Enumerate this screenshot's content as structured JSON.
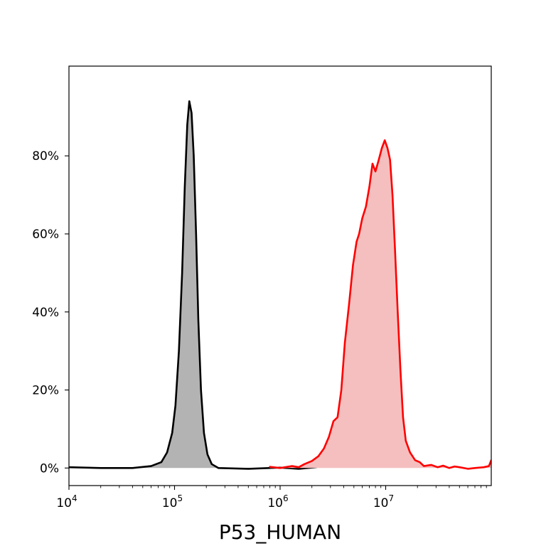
{
  "chart_data": {
    "type": "area",
    "title": "",
    "xlabel": "P53_HUMAN",
    "ylabel": "",
    "x_scale": "log",
    "xlim": [
      10000,
      100000000
    ],
    "ylim": [
      -0.045,
      1.03
    ],
    "grid": false,
    "x_ticks": [
      {
        "value": 10000,
        "base": "10",
        "exp": "4"
      },
      {
        "value": 100000,
        "base": "10",
        "exp": "5"
      },
      {
        "value": 1000000,
        "base": "10",
        "exp": "6"
      },
      {
        "value": 10000000,
        "base": "10",
        "exp": "7"
      }
    ],
    "y_ticks": [
      {
        "value": 0,
        "label": "0%"
      },
      {
        "value": 0.2,
        "label": "20%"
      },
      {
        "value": 0.4,
        "label": "40%"
      },
      {
        "value": 0.6,
        "label": "60%"
      },
      {
        "value": 0.8,
        "label": "80%"
      }
    ],
    "series": [
      {
        "stroke": "#000000",
        "fill": "#b3b3b3",
        "points": [
          [
            10000,
            0.002
          ],
          [
            20000,
            0.0
          ],
          [
            40000,
            0.0
          ],
          [
            60000,
            0.005
          ],
          [
            75000,
            0.015
          ],
          [
            85000,
            0.04
          ],
          [
            95000,
            0.09
          ],
          [
            102000,
            0.16
          ],
          [
            110000,
            0.3
          ],
          [
            118000,
            0.5
          ],
          [
            125000,
            0.72
          ],
          [
            132000,
            0.88
          ],
          [
            138000,
            0.94
          ],
          [
            145000,
            0.91
          ],
          [
            152000,
            0.8
          ],
          [
            160000,
            0.6
          ],
          [
            168000,
            0.38
          ],
          [
            178000,
            0.2
          ],
          [
            190000,
            0.09
          ],
          [
            205000,
            0.035
          ],
          [
            225000,
            0.01
          ],
          [
            260000,
            0.0
          ],
          [
            500000,
            -0.002
          ],
          [
            1000000,
            0.001
          ],
          [
            1500000,
            -0.002
          ],
          [
            2200000,
            0.002
          ]
        ]
      },
      {
        "stroke": "#ff0000",
        "fill": "#f5bfbf",
        "points": [
          [
            800000,
            0.003
          ],
          [
            1000000,
            0.0
          ],
          [
            1300000,
            0.005
          ],
          [
            1500000,
            0.002
          ],
          [
            1700000,
            0.01
          ],
          [
            2000000,
            0.018
          ],
          [
            2300000,
            0.03
          ],
          [
            2600000,
            0.05
          ],
          [
            2900000,
            0.08
          ],
          [
            3200000,
            0.12
          ],
          [
            3500000,
            0.13
          ],
          [
            3800000,
            0.2
          ],
          [
            4100000,
            0.32
          ],
          [
            4500000,
            0.42
          ],
          [
            4900000,
            0.52
          ],
          [
            5300000,
            0.58
          ],
          [
            5600000,
            0.6
          ],
          [
            6000000,
            0.64
          ],
          [
            6500000,
            0.67
          ],
          [
            7000000,
            0.72
          ],
          [
            7500000,
            0.78
          ],
          [
            8000000,
            0.76
          ],
          [
            8600000,
            0.79
          ],
          [
            9200000,
            0.82
          ],
          [
            9800000,
            0.84
          ],
          [
            10400000,
            0.82
          ],
          [
            11000000,
            0.79
          ],
          [
            11600000,
            0.7
          ],
          [
            12300000,
            0.55
          ],
          [
            13000000,
            0.4
          ],
          [
            13800000,
            0.25
          ],
          [
            14600000,
            0.13
          ],
          [
            15500000,
            0.07
          ],
          [
            17000000,
            0.04
          ],
          [
            19000000,
            0.02
          ],
          [
            21000000,
            0.015
          ],
          [
            23000000,
            0.005
          ],
          [
            27000000,
            0.008
          ],
          [
            31000000,
            0.002
          ],
          [
            35000000,
            0.006
          ],
          [
            40000000,
            0.0
          ],
          [
            45000000,
            0.004
          ],
          [
            50000000,
            0.002
          ],
          [
            60000000,
            -0.002
          ],
          [
            70000000,
            0.0
          ],
          [
            85000000,
            0.002
          ],
          [
            95000000,
            0.005
          ],
          [
            100000000,
            0.02
          ]
        ]
      }
    ]
  }
}
